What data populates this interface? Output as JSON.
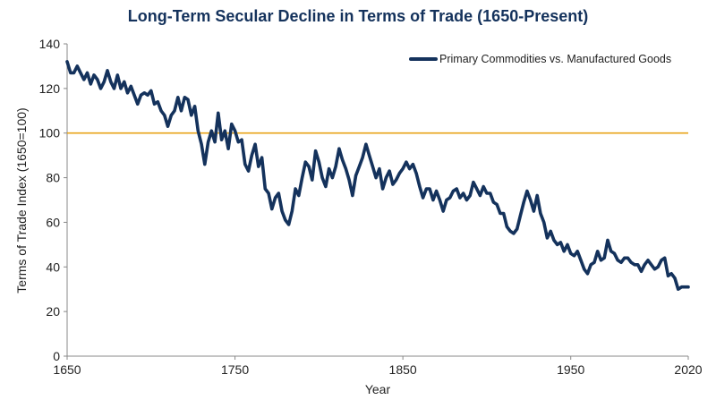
{
  "chart_data": {
    "type": "line",
    "title": "Long-Term Secular Decline in Terms of Trade (1650-Present)",
    "xlabel": "Year",
    "ylabel": "Terms of Trade Index (1650=100)",
    "xlim": [
      1650,
      2020
    ],
    "ylim": [
      0,
      140
    ],
    "x_ticks": [
      1650,
      1750,
      1850,
      1950,
      2020
    ],
    "y_ticks": [
      0,
      20,
      40,
      60,
      80,
      100,
      120,
      140
    ],
    "grid": false,
    "legend_position": "top-right",
    "reference_line": {
      "y": 100,
      "color": "#e8a317"
    },
    "series": [
      {
        "name": "Primary Commodities vs. Manufactured Goods",
        "color": "#14325c",
        "points": [
          [
            1650,
            132
          ],
          [
            1652,
            127
          ],
          [
            1654,
            127
          ],
          [
            1656,
            130
          ],
          [
            1658,
            127
          ],
          [
            1660,
            124
          ],
          [
            1662,
            127
          ],
          [
            1664,
            122
          ],
          [
            1666,
            126
          ],
          [
            1668,
            124
          ],
          [
            1670,
            120
          ],
          [
            1672,
            123
          ],
          [
            1674,
            128
          ],
          [
            1676,
            123
          ],
          [
            1678,
            120
          ],
          [
            1680,
            126
          ],
          [
            1682,
            120
          ],
          [
            1684,
            123
          ],
          [
            1686,
            118
          ],
          [
            1688,
            121
          ],
          [
            1690,
            117
          ],
          [
            1692,
            113
          ],
          [
            1694,
            117
          ],
          [
            1696,
            118
          ],
          [
            1698,
            117
          ],
          [
            1700,
            119
          ],
          [
            1702,
            113
          ],
          [
            1704,
            114
          ],
          [
            1706,
            110
          ],
          [
            1708,
            108
          ],
          [
            1710,
            103
          ],
          [
            1712,
            108
          ],
          [
            1714,
            110
          ],
          [
            1716,
            116
          ],
          [
            1718,
            110
          ],
          [
            1720,
            116
          ],
          [
            1722,
            115
          ],
          [
            1724,
            108
          ],
          [
            1726,
            112
          ],
          [
            1728,
            101
          ],
          [
            1730,
            95
          ],
          [
            1732,
            86
          ],
          [
            1734,
            96
          ],
          [
            1736,
            101
          ],
          [
            1738,
            96
          ],
          [
            1740,
            109
          ],
          [
            1742,
            97
          ],
          [
            1744,
            101
          ],
          [
            1746,
            93
          ],
          [
            1748,
            104
          ],
          [
            1750,
            101
          ],
          [
            1752,
            96
          ],
          [
            1754,
            97
          ],
          [
            1756,
            86
          ],
          [
            1758,
            83
          ],
          [
            1760,
            90
          ],
          [
            1762,
            95
          ],
          [
            1764,
            85
          ],
          [
            1766,
            89
          ],
          [
            1768,
            75
          ],
          [
            1770,
            73
          ],
          [
            1772,
            66
          ],
          [
            1774,
            71
          ],
          [
            1776,
            73
          ],
          [
            1778,
            65
          ],
          [
            1780,
            61
          ],
          [
            1782,
            59
          ],
          [
            1784,
            65
          ],
          [
            1786,
            75
          ],
          [
            1788,
            72
          ],
          [
            1790,
            80
          ],
          [
            1792,
            87
          ],
          [
            1794,
            85
          ],
          [
            1796,
            79
          ],
          [
            1798,
            92
          ],
          [
            1800,
            87
          ],
          [
            1802,
            80
          ],
          [
            1804,
            76
          ],
          [
            1806,
            84
          ],
          [
            1808,
            80
          ],
          [
            1810,
            85
          ],
          [
            1812,
            93
          ],
          [
            1814,
            88
          ],
          [
            1816,
            84
          ],
          [
            1818,
            79
          ],
          [
            1820,
            72
          ],
          [
            1822,
            81
          ],
          [
            1824,
            85
          ],
          [
            1826,
            89
          ],
          [
            1828,
            95
          ],
          [
            1830,
            90
          ],
          [
            1832,
            85
          ],
          [
            1834,
            80
          ],
          [
            1836,
            84
          ],
          [
            1838,
            75
          ],
          [
            1840,
            80
          ],
          [
            1842,
            83
          ],
          [
            1844,
            77
          ],
          [
            1846,
            79
          ],
          [
            1848,
            82
          ],
          [
            1850,
            84
          ],
          [
            1852,
            87
          ],
          [
            1854,
            84
          ],
          [
            1856,
            86
          ],
          [
            1858,
            82
          ],
          [
            1860,
            76
          ],
          [
            1862,
            71
          ],
          [
            1864,
            75
          ],
          [
            1866,
            75
          ],
          [
            1868,
            70
          ],
          [
            1870,
            74
          ],
          [
            1872,
            70
          ],
          [
            1874,
            65
          ],
          [
            1876,
            70
          ],
          [
            1878,
            71
          ],
          [
            1880,
            74
          ],
          [
            1882,
            75
          ],
          [
            1884,
            71
          ],
          [
            1886,
            73
          ],
          [
            1888,
            70
          ],
          [
            1890,
            72
          ],
          [
            1892,
            78
          ],
          [
            1894,
            75
          ],
          [
            1896,
            72
          ],
          [
            1898,
            76
          ],
          [
            1900,
            73
          ],
          [
            1902,
            73
          ],
          [
            1904,
            69
          ],
          [
            1906,
            68
          ],
          [
            1908,
            64
          ],
          [
            1910,
            64
          ],
          [
            1912,
            58
          ],
          [
            1914,
            56
          ],
          [
            1916,
            55
          ],
          [
            1918,
            57
          ],
          [
            1920,
            63
          ],
          [
            1922,
            69
          ],
          [
            1924,
            74
          ],
          [
            1926,
            70
          ],
          [
            1928,
            65
          ],
          [
            1930,
            72
          ],
          [
            1932,
            64
          ],
          [
            1934,
            60
          ],
          [
            1936,
            53
          ],
          [
            1938,
            56
          ],
          [
            1940,
            52
          ],
          [
            1942,
            50
          ],
          [
            1944,
            51
          ],
          [
            1946,
            47
          ],
          [
            1948,
            50
          ],
          [
            1950,
            46
          ],
          [
            1952,
            45
          ],
          [
            1954,
            47
          ],
          [
            1956,
            43
          ],
          [
            1958,
            39
          ],
          [
            1960,
            37
          ],
          [
            1962,
            41
          ],
          [
            1964,
            42
          ],
          [
            1966,
            47
          ],
          [
            1968,
            43
          ],
          [
            1970,
            44
          ],
          [
            1972,
            52
          ],
          [
            1974,
            47
          ],
          [
            1976,
            46
          ],
          [
            1978,
            43
          ],
          [
            1980,
            42
          ],
          [
            1982,
            44
          ],
          [
            1984,
            44
          ],
          [
            1986,
            42
          ],
          [
            1988,
            41
          ],
          [
            1990,
            41
          ],
          [
            1992,
            38
          ],
          [
            1994,
            41
          ],
          [
            1996,
            43
          ],
          [
            1998,
            41
          ],
          [
            2000,
            39
          ],
          [
            2002,
            40
          ],
          [
            2004,
            43
          ],
          [
            2006,
            44
          ],
          [
            2008,
            36
          ],
          [
            2010,
            37
          ],
          [
            2012,
            35
          ],
          [
            2014,
            30
          ],
          [
            2016,
            31
          ],
          [
            2018,
            31
          ],
          [
            2020,
            31
          ]
        ]
      }
    ]
  }
}
